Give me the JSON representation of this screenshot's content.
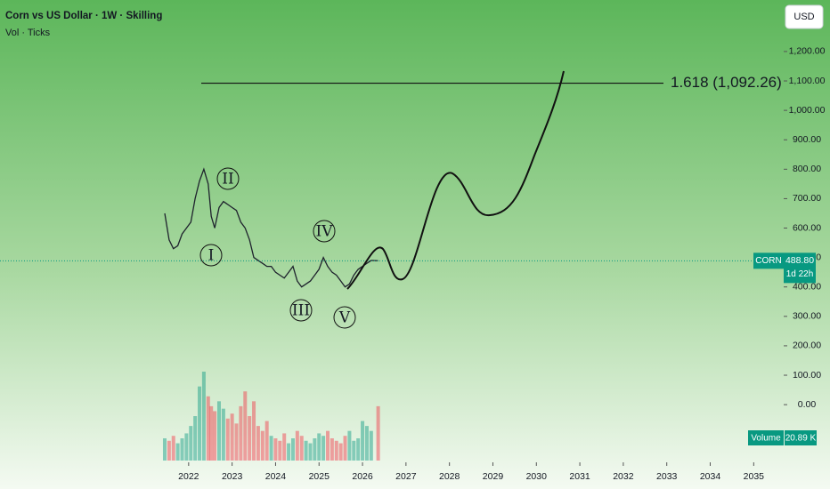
{
  "header": {
    "title": "Corn vs US Dollar · 1W · Skilling",
    "indicators": "Vol · Ticks",
    "currency": "USD"
  },
  "chart_data": {
    "type": "line",
    "x": [
      2021.45,
      2021.55,
      2021.65,
      2021.75,
      2021.85,
      2021.95,
      2022.05,
      2022.15,
      2022.25,
      2022.35,
      2022.45,
      2022.52,
      2022.6,
      2022.7,
      2022.8,
      2022.9,
      2023.0,
      2023.1,
      2023.2,
      2023.3,
      2023.4,
      2023.5,
      2023.6,
      2023.7,
      2023.8,
      2023.9,
      2024.0,
      2024.1,
      2024.2,
      2024.3,
      2024.4,
      2024.5,
      2024.6,
      2024.7,
      2024.8,
      2024.9,
      2025.0,
      2025.1,
      2025.2,
      2025.3,
      2025.4,
      2025.5,
      2025.6,
      2025.7,
      2025.8,
      2025.9,
      2026.0,
      2026.1,
      2026.2,
      2026.36
    ],
    "series": [
      {
        "name": "CORN",
        "color": "#1e222d",
        "values": [
          650,
          560,
          530,
          540,
          580,
          600,
          620,
          700,
          760,
          800,
          750,
          640,
          600,
          670,
          690,
          680,
          670,
          660,
          620,
          600,
          560,
          500,
          490,
          480,
          470,
          470,
          450,
          440,
          430,
          450,
          470,
          420,
          400,
          410,
          420,
          440,
          460,
          500,
          470,
          450,
          440,
          420,
          400,
          410,
          440,
          460,
          470,
          480,
          490,
          488.8
        ]
      }
    ],
    "volume": [
      9,
      8,
      10,
      7,
      9,
      11,
      14,
      18,
      30,
      36,
      26,
      22,
      20,
      24,
      21,
      17,
      19,
      15,
      22,
      28,
      18,
      24,
      14,
      12,
      16,
      10,
      9,
      8,
      11,
      7,
      9,
      12,
      10,
      8,
      7,
      9,
      11,
      10,
      12,
      9,
      8,
      7,
      10,
      12,
      8,
      9,
      16,
      14,
      12,
      22
    ],
    "vol_lim": [
      0,
      36
    ],
    "volume_label": "Volume",
    "volume_value": "20.89 K",
    "last_price": {
      "value": 488.8,
      "label": "488.80"
    },
    "countdown": "1d 22h",
    "xlim": [
      2017.66,
      2035.69
    ],
    "xticks": [
      2022,
      2023,
      2024,
      2025,
      2026,
      2027,
      2028,
      2029,
      2030,
      2031,
      2032,
      2033,
      2034,
      2035
    ],
    "ylim": [
      -196,
      1375
    ],
    "yticks": [
      {
        "value": 0,
        "label": "0.00"
      },
      {
        "value": 100,
        "label": "100.00"
      },
      {
        "value": 200,
        "label": "200.00"
      },
      {
        "value": 300,
        "label": "300.00"
      },
      {
        "value": 400,
        "label": "400.00"
      },
      {
        "value": 500,
        "label": "500.00"
      },
      {
        "value": 600,
        "label": "600.00"
      },
      {
        "value": 700,
        "label": "700.00"
      },
      {
        "value": 800,
        "label": "800.00"
      },
      {
        "value": 900,
        "label": "900.00"
      },
      {
        "value": 1000,
        "label": "1,000.00"
      },
      {
        "value": 1100,
        "label": "1,100.00"
      },
      {
        "value": 1200,
        "label": "1,200.00"
      }
    ],
    "fib_level": 1092.26,
    "fib_label": "1.618 (1,092.26)",
    "waves": [
      "I",
      "II",
      "III",
      "IV",
      "V"
    ]
  }
}
